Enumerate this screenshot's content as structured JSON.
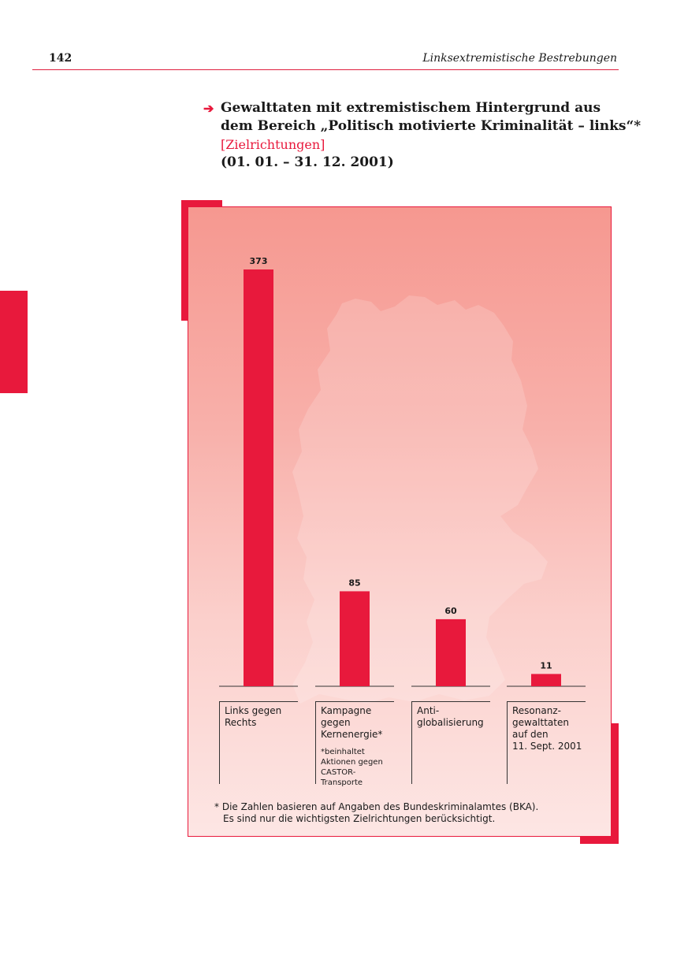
{
  "page": {
    "number": "142",
    "running_head": "Linksextremistische Bestrebungen"
  },
  "title": {
    "arrow": "➔",
    "line1": "Gewalttaten mit extremistischem Hintergrund aus",
    "line2": "dem Bereich „Politisch motivierte Kriminalität – links“*",
    "tag": "[Zielrichtungen]",
    "date": "(01. 01. – 31. 12. 2001)"
  },
  "colors": {
    "accent": "#e8193c",
    "bar": "#e8193c",
    "text": "#1a1a1a"
  },
  "chart_data": {
    "type": "bar",
    "categories": [
      "Links gegen Rechts",
      "Kampagne gegen Kernenergie*",
      "Anti-globalisierung",
      "Resonanz-gewalttaten auf den 11. Sept. 2001"
    ],
    "values": [
      373,
      85,
      60,
      11
    ],
    "data_labels": [
      "373",
      "85",
      "60",
      "11"
    ],
    "category_labels": [
      [
        "Links gegen",
        "Rechts"
      ],
      [
        "Kampagne",
        "gegen",
        "Kernenergie*"
      ],
      [
        "Anti-",
        "globalisierung"
      ],
      [
        "Resonanz-",
        "gewalttaten",
        "auf den",
        "11. Sept. 2001"
      ]
    ],
    "category_note": [
      "*beinhaltet",
      "Aktionen gegen",
      "CASTOR-Transporte"
    ],
    "ylim": [
      0,
      373
    ],
    "grid": false,
    "legend": "none",
    "footnote_line1": "Die Zahlen basieren auf Angaben des Bundeskriminalamtes (BKA).",
    "footnote_line2": "Es sind nur die wichtigsten Zielrichtungen berücksichtigt.",
    "footnote_mark": "*"
  }
}
